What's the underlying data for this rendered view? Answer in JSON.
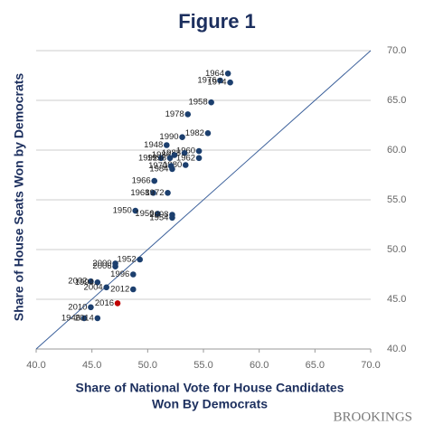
{
  "chart_data": {
    "type": "scatter",
    "title": "Figure 1",
    "ylabel": "Share of House Seats Won by Democrats",
    "xlabel": [
      "Share of National Vote for House Candidates",
      "Won By Democrats"
    ],
    "source": "BROOKINGS",
    "xlim": [
      40,
      70
    ],
    "ylim": [
      40,
      70
    ],
    "xticks": [
      {
        "value": 40,
        "label": "40.0"
      },
      {
        "value": 45,
        "label": "45.0"
      },
      {
        "value": 50,
        "label": "50.0"
      },
      {
        "value": 55,
        "label": "55.0"
      },
      {
        "value": 60,
        "label": "60.0"
      },
      {
        "value": 65,
        "label": "65.0"
      },
      {
        "value": 70,
        "label": "70.0"
      }
    ],
    "yticks": [
      {
        "value": 40,
        "label": "40.0"
      },
      {
        "value": 45,
        "label": "45.0"
      },
      {
        "value": 50,
        "label": "50.0"
      },
      {
        "value": 55,
        "label": "55.0"
      },
      {
        "value": 60,
        "label": "60.0"
      },
      {
        "value": 65,
        "label": "65.0"
      },
      {
        "value": 70,
        "label": "70.0"
      }
    ],
    "y_axis_side": "right",
    "grid": true,
    "diagonal": true,
    "point_labels": [
      "1964",
      "1976",
      "1974",
      "1958",
      "1978",
      "1982",
      "1990",
      "1948",
      "1960",
      "1988",
      "1986",
      "1992",
      "1998",
      "1962",
      "1980",
      "1970",
      "1984",
      "1966",
      "1968",
      "1972",
      "1950",
      "1956",
      "2008",
      "1954",
      "1952",
      "2000",
      "2006",
      "1996",
      "2002",
      "1994",
      "2004",
      "2012",
      "2016",
      "2010",
      "1946",
      "2014"
    ],
    "x": [
      57.2,
      56.5,
      57.4,
      55.7,
      53.6,
      55.4,
      53.1,
      51.7,
      54.6,
      53.3,
      52.4,
      51.2,
      52.0,
      54.6,
      53.4,
      52.1,
      52.2,
      50.6,
      50.5,
      51.8,
      48.9,
      50.9,
      52.2,
      52.2,
      49.3,
      47.1,
      47.1,
      48.7,
      44.9,
      45.5,
      46.3,
      48.7,
      47.3,
      44.9,
      44.3,
      45.5
    ],
    "y": [
      67.7,
      67.0,
      66.8,
      64.8,
      63.6,
      61.7,
      61.3,
      60.5,
      59.9,
      59.7,
      59.5,
      59.2,
      59.2,
      59.2,
      58.5,
      58.4,
      58.1,
      56.9,
      55.7,
      55.7,
      53.9,
      53.6,
      53.5,
      53.2,
      49.0,
      48.6,
      48.3,
      47.5,
      46.8,
      46.7,
      46.2,
      46.0,
      44.6,
      44.2,
      43.1,
      43.1
    ],
    "colors": [
      "#1c3f6e",
      "#1c3f6e",
      "#1c3f6e",
      "#1c3f6e",
      "#1c3f6e",
      "#1c3f6e",
      "#1c3f6e",
      "#1c3f6e",
      "#1c3f6e",
      "#1c3f6e",
      "#1c3f6e",
      "#1c3f6e",
      "#1c3f6e",
      "#1c3f6e",
      "#1c3f6e",
      "#1c3f6e",
      "#1c3f6e",
      "#1c3f6e",
      "#1c3f6e",
      "#1c3f6e",
      "#1c3f6e",
      "#1c3f6e",
      "#1c3f6e",
      "#1c3f6e",
      "#1c3f6e",
      "#1c3f6e",
      "#1c3f6e",
      "#1c3f6e",
      "#1c3f6e",
      "#1c3f6e",
      "#1c3f6e",
      "#1c3f6e",
      "#c00000",
      "#1c3f6e",
      "#1c3f6e",
      "#1c3f6e"
    ]
  }
}
